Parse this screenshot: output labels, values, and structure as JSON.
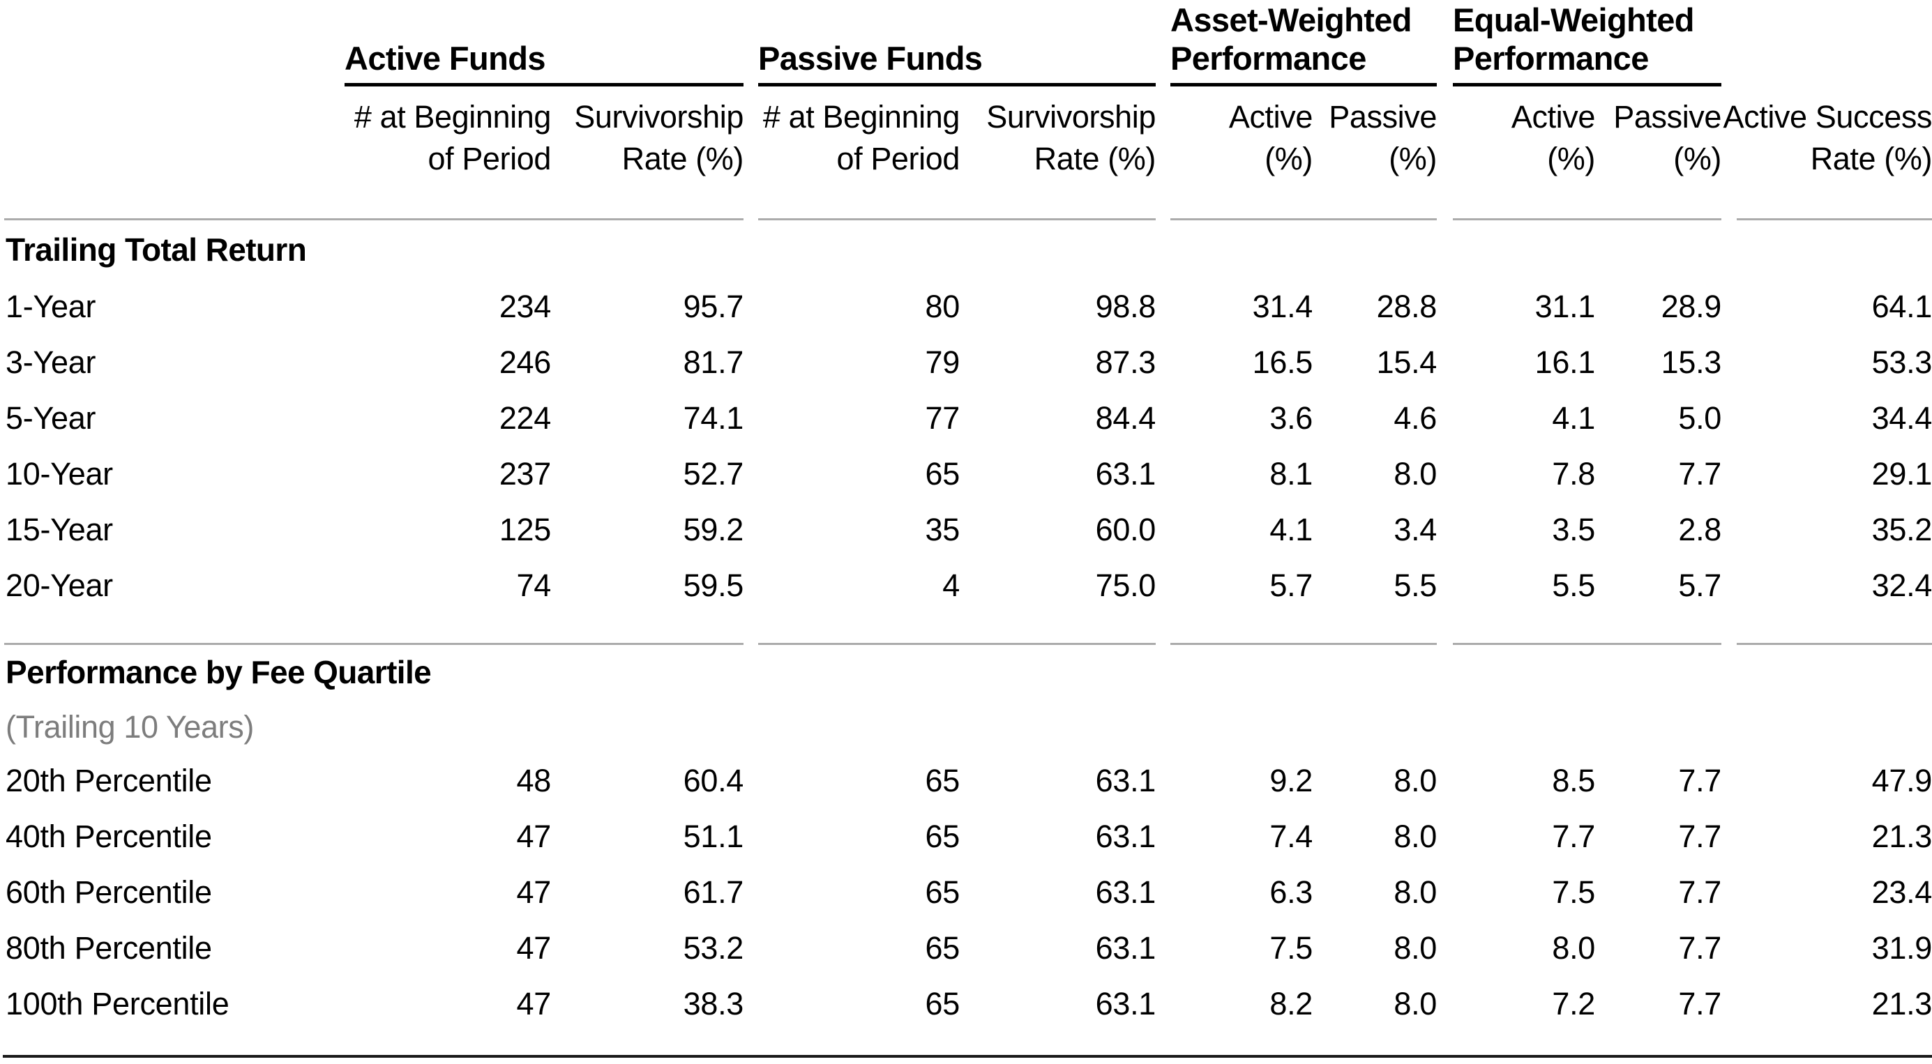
{
  "colors": {
    "text": "#000000",
    "subtitle_gray": "#7d7d7d",
    "rule_gray": "#ababab",
    "rule_dark": "#1a1a1a"
  },
  "table": {
    "header": {
      "groups": [
        {
          "lines": [
            "Active Funds",
            ""
          ]
        },
        {
          "lines": [
            "Passive Funds",
            ""
          ]
        },
        {
          "lines": [
            "Asset-Weighted",
            "Performance"
          ]
        },
        {
          "lines": [
            "Equal-Weighted",
            "Performance"
          ]
        }
      ],
      "subcolumns": [
        {
          "lines": [
            "# at Beginning",
            "of Period"
          ]
        },
        {
          "lines": [
            "Survivorship",
            "Rate (%)"
          ]
        },
        {
          "lines": [
            "# at Beginning",
            "of Period"
          ]
        },
        {
          "lines": [
            "Survivorship",
            "Rate (%)"
          ]
        },
        {
          "lines": [
            "Active",
            "(%)"
          ]
        },
        {
          "lines": [
            "Passive",
            "(%)"
          ]
        },
        {
          "lines": [
            "Active",
            "(%)"
          ]
        },
        {
          "lines": [
            "Passive",
            "(%)"
          ]
        },
        {
          "lines": [
            "Active Success",
            "Rate (%)"
          ]
        }
      ]
    },
    "sections": [
      {
        "title": "Trailing Total Return",
        "subtitle": "",
        "rows": [
          {
            "label": "1-Year",
            "values": [
              "234",
              "95.7",
              "80",
              "98.8",
              "31.4",
              "28.8",
              "31.1",
              "28.9",
              "64.1"
            ]
          },
          {
            "label": "3-Year",
            "values": [
              "246",
              "81.7",
              "79",
              "87.3",
              "16.5",
              "15.4",
              "16.1",
              "15.3",
              "53.3"
            ]
          },
          {
            "label": "5-Year",
            "values": [
              "224",
              "74.1",
              "77",
              "84.4",
              "3.6",
              "4.6",
              "4.1",
              "5.0",
              "34.4"
            ]
          },
          {
            "label": "10-Year",
            "values": [
              "237",
              "52.7",
              "65",
              "63.1",
              "8.1",
              "8.0",
              "7.8",
              "7.7",
              "29.1"
            ]
          },
          {
            "label": "15-Year",
            "values": [
              "125",
              "59.2",
              "35",
              "60.0",
              "4.1",
              "3.4",
              "3.5",
              "2.8",
              "35.2"
            ]
          },
          {
            "label": "20-Year",
            "values": [
              "74",
              "59.5",
              "4",
              "75.0",
              "5.7",
              "5.5",
              "5.5",
              "5.7",
              "32.4"
            ]
          }
        ]
      },
      {
        "title": "Performance by Fee Quartile",
        "subtitle": "(Trailing 10 Years)",
        "rows": [
          {
            "label": "20th Percentile",
            "values": [
              "48",
              "60.4",
              "65",
              "63.1",
              "9.2",
              "8.0",
              "8.5",
              "7.7",
              "47.9"
            ]
          },
          {
            "label": "40th Percentile",
            "values": [
              "47",
              "51.1",
              "65",
              "63.1",
              "7.4",
              "8.0",
              "7.7",
              "7.7",
              "21.3"
            ]
          },
          {
            "label": "60th Percentile",
            "values": [
              "47",
              "61.7",
              "65",
              "63.1",
              "6.3",
              "8.0",
              "7.5",
              "7.7",
              "23.4"
            ]
          },
          {
            "label": "80th Percentile",
            "values": [
              "47",
              "53.2",
              "65",
              "63.1",
              "7.5",
              "8.0",
              "8.0",
              "7.7",
              "31.9"
            ]
          },
          {
            "label": "100th Percentile",
            "values": [
              "47",
              "38.3",
              "65",
              "63.1",
              "8.2",
              "8.0",
              "7.2",
              "7.7",
              "21.3"
            ]
          }
        ]
      }
    ]
  }
}
